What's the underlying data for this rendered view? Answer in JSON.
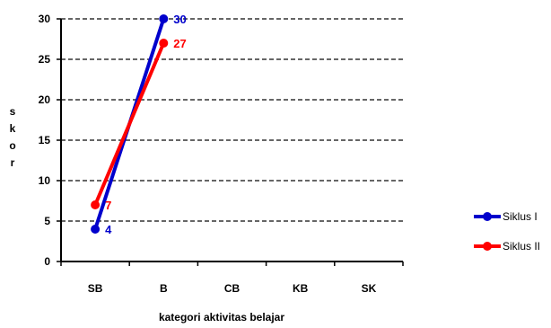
{
  "chart_data": {
    "type": "line",
    "title": "",
    "xlabel": "kategori aktivitas belajar",
    "ylabel": "skor",
    "categories": [
      "SB",
      "B",
      "CB",
      "KB",
      "SK"
    ],
    "ylim": [
      0,
      30
    ],
    "yticks": [
      0,
      5,
      10,
      15,
      20,
      25,
      30
    ],
    "grid": "horizontal dashed",
    "legend_position": "right",
    "series": [
      {
        "name": "Siklus I",
        "color": "#0000CC",
        "values": [
          4,
          30,
          null,
          null,
          null
        ],
        "labels": [
          "4",
          "30"
        ]
      },
      {
        "name": "Siklus II",
        "color": "#FF0000",
        "values": [
          7,
          27,
          null,
          null,
          null
        ],
        "labels": [
          "7",
          "27"
        ]
      }
    ]
  }
}
